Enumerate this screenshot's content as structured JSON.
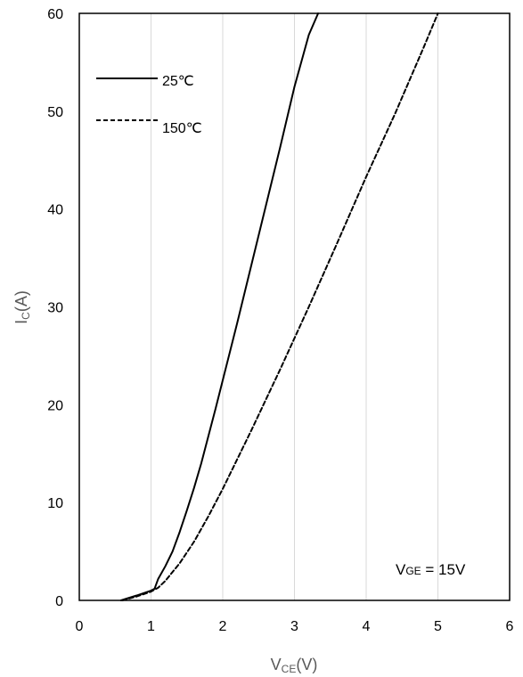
{
  "chart_data": {
    "type": "line",
    "title": "",
    "xlabel": {
      "main": "V",
      "sub": "CE",
      "suffix": "(V)"
    },
    "ylabel": {
      "main": "I",
      "sub": "C",
      "suffix": "(A)"
    },
    "xlim": [
      0,
      6
    ],
    "ylim": [
      0,
      60
    ],
    "xticks": [
      0,
      1,
      2,
      3,
      4,
      5,
      6
    ],
    "yticks": [
      0,
      10,
      20,
      30,
      40,
      50,
      60
    ],
    "grid": {
      "vertical": true,
      "horizontal": false
    },
    "legend_position": "top-left",
    "annotation": {
      "main": "V",
      "sub": "GE",
      "suffix": " = 15V",
      "position": "bottom-right"
    },
    "series": [
      {
        "name": "25℃",
        "style": "solid",
        "color": "#000000",
        "points": [
          [
            0.58,
            0
          ],
          [
            0.8,
            0.5
          ],
          [
            1.0,
            1.0
          ],
          [
            1.05,
            1.2
          ],
          [
            1.1,
            2.2
          ],
          [
            1.2,
            3.5
          ],
          [
            1.3,
            5.0
          ],
          [
            1.4,
            7.0
          ],
          [
            1.5,
            9.2
          ],
          [
            1.6,
            11.5
          ],
          [
            1.7,
            14.0
          ],
          [
            1.8,
            16.8
          ],
          [
            1.9,
            19.6
          ],
          [
            2.0,
            22.5
          ],
          [
            2.2,
            28.3
          ],
          [
            2.4,
            34.3
          ],
          [
            2.6,
            40.3
          ],
          [
            2.8,
            46.3
          ],
          [
            3.0,
            52.5
          ],
          [
            3.2,
            57.8
          ],
          [
            3.33,
            60
          ]
        ]
      },
      {
        "name": "150℃",
        "style": "dashed",
        "color": "#000000",
        "points": [
          [
            0.6,
            0
          ],
          [
            0.8,
            0.4
          ],
          [
            1.0,
            0.9
          ],
          [
            1.1,
            1.3
          ],
          [
            1.2,
            2.0
          ],
          [
            1.4,
            3.8
          ],
          [
            1.6,
            6.0
          ],
          [
            1.8,
            8.6
          ],
          [
            2.0,
            11.4
          ],
          [
            2.4,
            17.4
          ],
          [
            2.8,
            23.6
          ],
          [
            3.2,
            30.0
          ],
          [
            3.6,
            36.6
          ],
          [
            4.0,
            43.3
          ],
          [
            4.4,
            49.7
          ],
          [
            4.8,
            56.5
          ],
          [
            5.0,
            60
          ]
        ]
      }
    ]
  }
}
